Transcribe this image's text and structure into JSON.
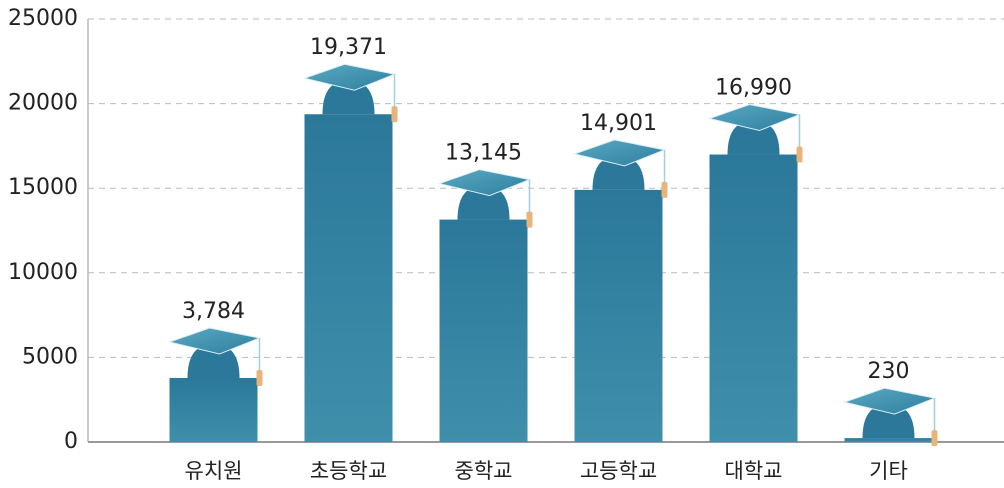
{
  "chart_data": {
    "type": "bar",
    "categories": [
      "유치원",
      "초등학교",
      "중학교",
      "고등학교",
      "대학교",
      "기타"
    ],
    "values": [
      3784,
      19371,
      13145,
      14901,
      16990,
      230
    ],
    "value_labels": [
      "3,784",
      "19,371",
      "13,145",
      "14,901",
      "16,990",
      "230"
    ],
    "color": "#2f7fa0",
    "ylim": [
      0,
      25000
    ],
    "yticks": [
      0,
      5000,
      10000,
      15000,
      20000,
      25000
    ],
    "grid": true
  }
}
